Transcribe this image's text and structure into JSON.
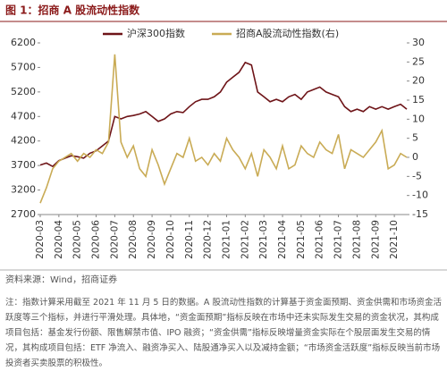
{
  "chart_data": {
    "type": "line",
    "title": "图 1：招商 A 股流动性指数",
    "categories": [
      "2020-03",
      null,
      null,
      "2020-04",
      null,
      null,
      "2020-05",
      null,
      null,
      "2020-06",
      null,
      null,
      "2020-07",
      null,
      null,
      "2020-08",
      null,
      null,
      "2020-09",
      null,
      null,
      "2020-10",
      null,
      null,
      "2020-11",
      null,
      null,
      "2020-12",
      null,
      null,
      "2021-01",
      null,
      null,
      "2021-02",
      null,
      null,
      "2021-03",
      null,
      null,
      "2021-04",
      null,
      null,
      "2021-05",
      null,
      null,
      "2021-06",
      null,
      null,
      "2021-07",
      null,
      null,
      "2021-08",
      null,
      null,
      "2021-09",
      null,
      null,
      "2021-10",
      null,
      null
    ],
    "series": [
      {
        "name": "沪深300指数",
        "color": "#6e1418",
        "values": [
          3710,
          3750,
          3680,
          3800,
          3850,
          3900,
          3880,
          3850,
          3950,
          4000,
          4100,
          4200,
          4700,
          4650,
          4700,
          4720,
          4750,
          4800,
          4700,
          4600,
          4650,
          4750,
          4800,
          4780,
          4900,
          5000,
          5050,
          5050,
          5100,
          5200,
          5400,
          5500,
          5600,
          5800,
          5750,
          5200,
          5100,
          5000,
          5050,
          5000,
          5100,
          5150,
          5050,
          5200,
          5250,
          5300,
          5200,
          5150,
          5100,
          4900,
          4800,
          4850,
          4800,
          4900,
          4850,
          4900,
          4850,
          4900,
          4950,
          4850
        ]
      },
      {
        "name": "招商A股流动性指数(右)",
        "color": "#c9ab55",
        "axis": "y2",
        "values": [
          -12,
          -8,
          -3,
          -1,
          0,
          1,
          -1,
          1,
          0,
          2,
          1,
          4,
          27,
          4,
          0,
          3,
          -3,
          -5,
          2,
          -2,
          -7,
          -3,
          1,
          0,
          5,
          -1,
          0,
          -2,
          1,
          -1,
          5,
          2,
          0,
          -3,
          1,
          -5,
          2,
          0,
          -3,
          3,
          -3,
          -2,
          3,
          1,
          0,
          4,
          2,
          1,
          6,
          -3,
          2,
          1,
          0,
          2,
          4,
          7,
          -3,
          -2,
          1,
          0
        ]
      }
    ],
    "ylim": [
      2700,
      6200
    ],
    "yticks": [
      2700,
      3200,
      3700,
      4200,
      4700,
      5200,
      5700,
      6200
    ],
    "y2lim": [
      -15,
      30
    ],
    "y2ticks": [
      -15,
      -10,
      -5,
      0,
      5,
      10,
      15,
      20,
      25,
      30
    ],
    "legend": "top",
    "source": "资料来源：Wind，招商证券",
    "note": "注：指数计算采用截至 2021 年 11 月 5 日的数据。A 股流动性指数的计算基于资金面预期、资金供需和市场资金活跃度等三个指标，并进行平滑处理。具体地，“资金面预期”指标反映在市场中还未实际发生交易的资金状况，其构成项目包括：基金发行份额、限售解禁市值、IPO 融资；“资金供需”指标反映增量资金实际在个股层面发生交易的情况，其构成项目包括：ETF 净流入、融资净买入、陆股通净买入以及减持金额；“市场资金活跃度”指标反映当前市场投资者买卖股票的积极性。"
  }
}
